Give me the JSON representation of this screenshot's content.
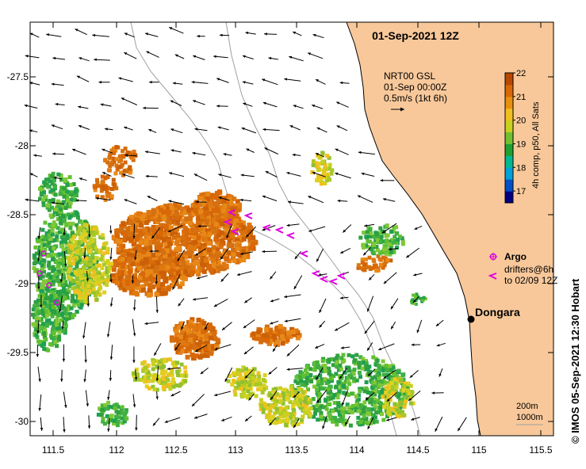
{
  "title": "01-Sep-2021 12Z",
  "product": {
    "line1": "NRT00 GSL",
    "line2": "01-Sep 00:00Z",
    "line3": "0.5m/s (1kt 6h)"
  },
  "colorbar": {
    "label": "4h comp, p50, All Sats",
    "ticks": [
      "22",
      "21",
      "20",
      "19",
      "18",
      "17"
    ],
    "min": 16.5,
    "max": 22,
    "colors": [
      "#000080",
      "#0050c8",
      "#00a0d8",
      "#00b890",
      "#20a030",
      "#70c030",
      "#c8d020",
      "#f0c020",
      "#e89010",
      "#d86808",
      "#b84800"
    ]
  },
  "axes": {
    "x_ticks": [
      "111.5",
      "112",
      "112.5",
      "113",
      "113.5",
      "114",
      "114.5",
      "115",
      "115.5"
    ],
    "y_ticks": [
      "-27.5",
      "-28",
      "-28.5",
      "-29",
      "-29.5",
      "-30"
    ]
  },
  "legend": {
    "argo_label": "Argo",
    "drifter_line1": "drifters@6h",
    "drifter_line2": "to 02/09 12Z"
  },
  "place": {
    "name": "Dongara"
  },
  "isobaths": {
    "label1": "200m",
    "label2": "1000m"
  },
  "credit": "© IMOS 05-Sep-2021 12:30 Hobart",
  "colors": {
    "land": "#f8c89a",
    "argo": "#e000e0",
    "drifter": "#e000e0",
    "coast": "#000000",
    "isobath": "#a0a0a0"
  }
}
